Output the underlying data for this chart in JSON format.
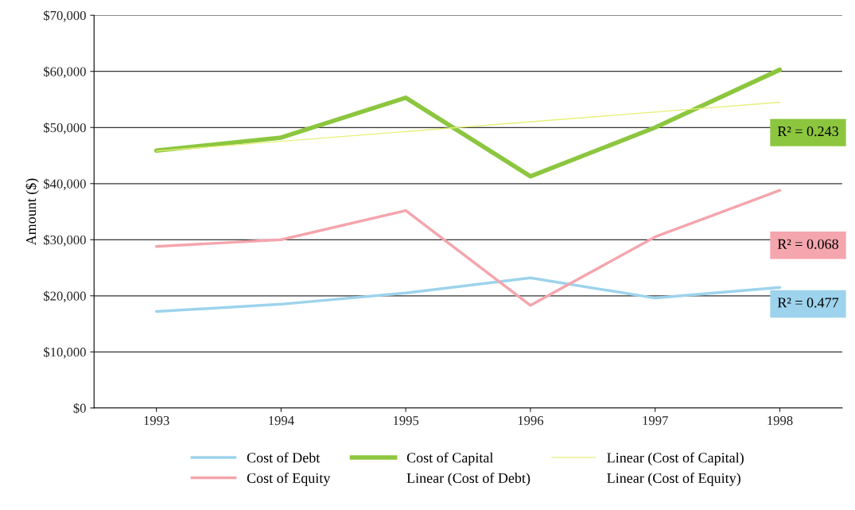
{
  "chart_data": {
    "type": "line",
    "ylabel": "Amount ($)",
    "categories": [
      "1993",
      "1994",
      "1995",
      "1996",
      "1997",
      "1998"
    ],
    "series": [
      {
        "name": "Cost of Debt",
        "color": "#9dd3ec",
        "values": [
          17200,
          18500,
          20500,
          23200,
          19600,
          21500
        ]
      },
      {
        "name": "Cost of Equity",
        "color": "#f4a5ad",
        "values": [
          28800,
          30000,
          35200,
          18300,
          30500,
          38800
        ]
      },
      {
        "name": "Cost of Capital",
        "color": "#8cc63f",
        "values": [
          45900,
          48200,
          55300,
          41300,
          50000,
          60300
        ]
      },
      {
        "name": "Linear (Cost of Debt)",
        "values": [
          null,
          null,
          null,
          null,
          null,
          null
        ]
      },
      {
        "name": "Linear (Cost of Capital)",
        "color": "#e6f07a",
        "values": [
          45800,
          null,
          null,
          null,
          null,
          54500
        ]
      },
      {
        "name": "Linear (Cost of Equity)",
        "values": [
          null,
          null,
          null,
          null,
          null,
          null
        ]
      }
    ],
    "ylim": [
      0,
      70000
    ],
    "yticks": [
      {
        "value": 0,
        "label": "$0"
      },
      {
        "value": 10000,
        "label": "$10,000"
      },
      {
        "value": 20000,
        "label": "$20,000"
      },
      {
        "value": 30000,
        "label": "$30,000"
      },
      {
        "value": 40000,
        "label": "$40,000"
      },
      {
        "value": 50000,
        "label": "$50,000"
      },
      {
        "value": 60000,
        "label": "$60,000"
      },
      {
        "value": 70000,
        "label": "$70,000"
      }
    ],
    "grid": "y",
    "legend": "bottom",
    "marker": "none",
    "line_style": "solid",
    "annotations": [
      "R² = 0.243",
      "R² = 0.068",
      "R² = 0.477"
    ]
  }
}
